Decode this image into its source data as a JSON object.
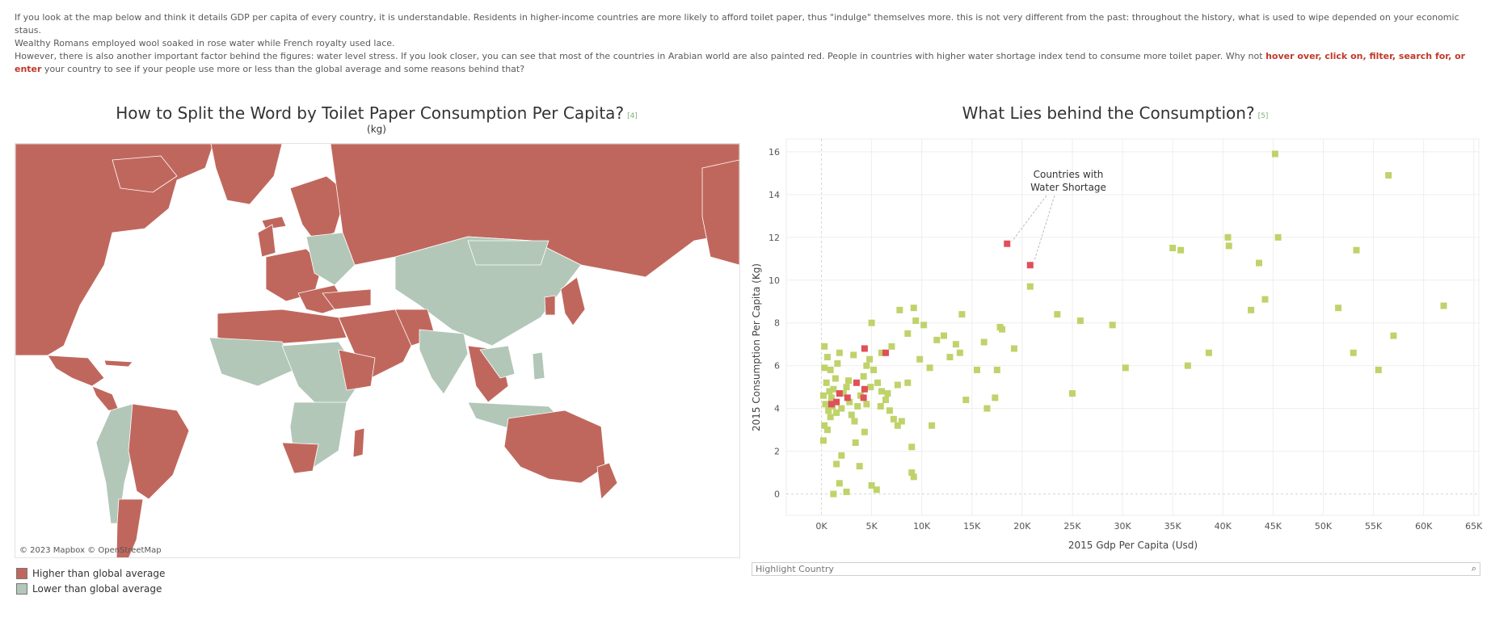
{
  "intro": {
    "line1": "If you look at the map below and think it details GDP per capita of every country, it is understandable. Residents in higher-income countries are more likely to afford toilet paper, thus \"indulge\" themselves more. this is not very different from the past: throughout the history, what is used to wipe depended on your economic staus.",
    "line2": "Wealthy Romans employed wool soaked in rose water while French royalty used lace.",
    "line3_a": "However, there is also another important factor behind the figures: water level stress. If you look closer, you can see that most of the countries in Arabian world are also painted red. People in countries with higher water shortage index tend to consume more toilet paper. Why not ",
    "line3_em": "hover over, click on, filter, search for, or enter",
    "line3_b": " your country to see if your people use more or less than the global average and some reasons behind that?"
  },
  "map": {
    "title": "How to Split the Word by Toilet Paper Consumption Per Capita?",
    "ref": "[4]",
    "subtitle": "(kg)",
    "attribution": "© 2023 Mapbox  © OpenStreetMap",
    "legend": [
      {
        "label": "Higher than global average",
        "color": "#c0675d"
      },
      {
        "label": "Lower than global average",
        "color": "#b2c7b8"
      }
    ]
  },
  "scatter": {
    "title": "What Lies behind the Consumption?",
    "ref": "[5]",
    "search_placeholder": "Highlight Country",
    "annotation_line1": "Countries with",
    "annotation_line2": "Water Shortage"
  },
  "colors": {
    "higher": "#c0675d",
    "lower": "#b2c7b8",
    "normal_point": "#bfd36a",
    "shortage_point": "#e0505a",
    "accent_text": "#c0392b"
  },
  "chart_data": {
    "type": "scatter",
    "xlabel": "2015 Gdp Per Capita (Usd)",
    "ylabel": "2015 Consumption Per Capita (Kg)",
    "xlim": [
      -3500,
      65500
    ],
    "ylim": [
      -1,
      16.6
    ],
    "x_ticks": [
      0,
      5000,
      10000,
      15000,
      20000,
      25000,
      30000,
      35000,
      40000,
      45000,
      50000,
      55000,
      60000,
      65000
    ],
    "x_tick_labels": [
      "0K",
      "5K",
      "10K",
      "15K",
      "20K",
      "25K",
      "30K",
      "35K",
      "40K",
      "45K",
      "50K",
      "55K",
      "60K",
      "65K"
    ],
    "y_ticks": [
      0,
      2,
      4,
      6,
      8,
      10,
      12,
      14,
      16
    ],
    "grid": true,
    "series": [
      {
        "color": "#bfd36a",
        "points": [
          [
            300,
            6.9
          ],
          [
            600,
            6.4
          ],
          [
            900,
            5.8
          ],
          [
            500,
            5.2
          ],
          [
            200,
            4.6
          ],
          [
            400,
            4.2
          ],
          [
            700,
            3.9
          ],
          [
            1000,
            4.5
          ],
          [
            1200,
            4.9
          ],
          [
            1400,
            5.4
          ],
          [
            1600,
            6.1
          ],
          [
            1800,
            6.6
          ],
          [
            300,
            3.2
          ],
          [
            600,
            3.0
          ],
          [
            200,
            2.5
          ],
          [
            900,
            3.6
          ],
          [
            1500,
            3.8
          ],
          [
            2000,
            4.0
          ],
          [
            2200,
            4.7
          ],
          [
            2500,
            5.0
          ],
          [
            2800,
            4.3
          ],
          [
            3000,
            3.7
          ],
          [
            3300,
            3.4
          ],
          [
            3600,
            4.1
          ],
          [
            3900,
            4.6
          ],
          [
            4200,
            5.5
          ],
          [
            4500,
            6.0
          ],
          [
            4800,
            6.3
          ],
          [
            5200,
            5.8
          ],
          [
            5600,
            5.2
          ],
          [
            6000,
            4.8
          ],
          [
            6400,
            4.4
          ],
          [
            6800,
            3.9
          ],
          [
            7200,
            3.5
          ],
          [
            7600,
            3.2
          ],
          [
            8000,
            3.4
          ],
          [
            5000,
            8.0
          ],
          [
            6000,
            6.6
          ],
          [
            7000,
            6.9
          ],
          [
            7800,
            8.6
          ],
          [
            8600,
            7.5
          ],
          [
            9200,
            8.7
          ],
          [
            9400,
            8.1
          ],
          [
            9800,
            6.3
          ],
          [
            10200,
            7.9
          ],
          [
            10800,
            5.9
          ],
          [
            11500,
            7.2
          ],
          [
            12200,
            7.4
          ],
          [
            12800,
            6.4
          ],
          [
            13400,
            7.0
          ],
          [
            13800,
            6.6
          ],
          [
            14000,
            8.4
          ],
          [
            15500,
            5.8
          ],
          [
            16200,
            7.1
          ],
          [
            17500,
            5.8
          ],
          [
            17800,
            7.8
          ],
          [
            18000,
            7.7
          ],
          [
            19200,
            6.8
          ],
          [
            20800,
            9.7
          ],
          [
            23500,
            8.4
          ],
          [
            25800,
            8.1
          ],
          [
            29000,
            7.9
          ],
          [
            30300,
            5.9
          ],
          [
            35000,
            11.5
          ],
          [
            35800,
            11.4
          ],
          [
            36500,
            6.0
          ],
          [
            38600,
            6.6
          ],
          [
            40500,
            12.0
          ],
          [
            40600,
            11.6
          ],
          [
            42800,
            8.6
          ],
          [
            43600,
            10.8
          ],
          [
            44200,
            9.1
          ],
          [
            45200,
            15.9
          ],
          [
            45500,
            12.0
          ],
          [
            51500,
            8.7
          ],
          [
            53000,
            6.6
          ],
          [
            53300,
            11.4
          ],
          [
            55500,
            5.8
          ],
          [
            56500,
            14.9
          ],
          [
            57000,
            7.4
          ],
          [
            62000,
            8.8
          ],
          [
            14400,
            4.4
          ],
          [
            16500,
            4.0
          ],
          [
            17300,
            4.5
          ],
          [
            11000,
            3.2
          ],
          [
            9000,
            2.2
          ],
          [
            9000,
            1.0
          ],
          [
            9200,
            0.8
          ],
          [
            5000,
            0.4
          ],
          [
            5500,
            0.2
          ],
          [
            2500,
            0.1
          ],
          [
            1200,
            0.0
          ],
          [
            1800,
            0.5
          ],
          [
            1500,
            1.4
          ],
          [
            2000,
            1.8
          ],
          [
            3800,
            1.3
          ],
          [
            25000,
            4.7
          ],
          [
            8600,
            5.2
          ],
          [
            7600,
            5.1
          ],
          [
            4300,
            2.9
          ],
          [
            3400,
            2.4
          ],
          [
            4500,
            4.2
          ],
          [
            2700,
            5.3
          ],
          [
            1100,
            4.1
          ],
          [
            800,
            4.8
          ],
          [
            300,
            5.9
          ],
          [
            3200,
            6.5
          ],
          [
            4900,
            5.0
          ],
          [
            5900,
            4.1
          ],
          [
            6600,
            4.7
          ]
        ]
      },
      {
        "color": "#e0505a",
        "points": [
          [
            18500,
            11.7
          ],
          [
            20800,
            10.7
          ],
          [
            4300,
            6.8
          ],
          [
            6400,
            6.6
          ],
          [
            3500,
            5.2
          ],
          [
            4300,
            4.9
          ],
          [
            1800,
            4.7
          ],
          [
            1000,
            4.2
          ],
          [
            2600,
            4.5
          ],
          [
            4200,
            4.5
          ],
          [
            1500,
            4.3
          ]
        ]
      }
    ]
  }
}
